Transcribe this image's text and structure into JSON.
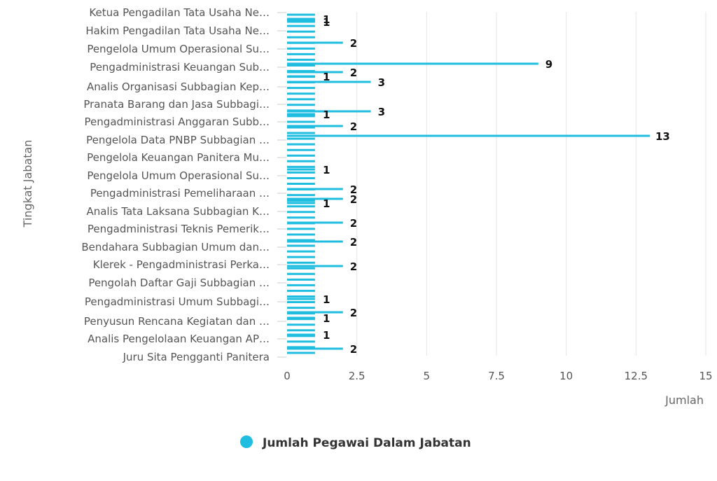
{
  "chart_data": {
    "type": "bar",
    "orientation": "horizontal",
    "ylabel": "Tingkat Jabatan",
    "xlabel": "Jumlah",
    "xlim": [
      0,
      15
    ],
    "xticks": [
      "0",
      "2.5",
      "5",
      "7.5",
      "10",
      "12.5",
      "15"
    ],
    "xtick_values": [
      0,
      2.5,
      5,
      7.5,
      10,
      12.5,
      15
    ],
    "grid": true,
    "legend_position": "bottom",
    "color": "#1fbde0",
    "visible_category_labels": [
      "Ketua Pengadilan Tata Usaha Ne…",
      "Hakim Pengadilan Tata Usaha Ne…",
      "Pengelola Umum Operasional Su…",
      "Pengadministrasi Keuangan Sub…",
      "Analis Organisasi Subbagian Kep…",
      "Pranata Barang dan Jasa Subbagi…",
      "Pengadministrasi Anggaran Subb…",
      "Pengelola Data PNBP Subbagian …",
      "Pengelola Keuangan Panitera Mu…",
      "Pengelola Umum Operasional Su…",
      "Pengadministrasi Pemeliharaan …",
      "Analis Tata Laksana Subbagian K…",
      "Pengadministrasi Teknis Pemerik…",
      "Bendahara Subbagian Umum dan…",
      "Klerek - Pengadministrasi Perka…",
      "Pengolah Daftar Gaji Subbagian …",
      "Pengadministrasi Umum Subbagi…",
      "Penyusun Rencana Kegiatan dan …",
      "Analis Pengelolaan Keuangan AP…",
      "Juru Sita Pengganti Panitera"
    ],
    "series": [
      {
        "name": "Jumlah Pegawai Dalam Jabatan",
        "values": [
          1,
          1,
          2,
          9,
          2,
          3,
          1,
          3,
          2,
          13,
          1,
          1,
          2,
          2,
          1,
          2,
          2,
          2,
          1,
          1,
          2,
          1,
          2
        ]
      }
    ],
    "labeled_bars": [
      {
        "value": 1,
        "label": "1"
      },
      {
        "value": 1,
        "label": "1"
      },
      {
        "value": 2,
        "label": "2"
      },
      {
        "value": 9,
        "label": "9"
      },
      {
        "value": 2,
        "label": "2"
      },
      {
        "value": 3,
        "label": "3"
      },
      {
        "value": 1,
        "label": "1"
      },
      {
        "value": 3,
        "label": "3"
      },
      {
        "value": 2,
        "label": "2"
      },
      {
        "value": 13,
        "label": "13"
      },
      {
        "value": 1,
        "label": "1"
      },
      {
        "value": 1,
        "label": "1"
      },
      {
        "value": 2,
        "label": "2"
      },
      {
        "value": 2,
        "label": "2"
      },
      {
        "value": 1,
        "label": "1"
      },
      {
        "value": 2,
        "label": "2"
      },
      {
        "value": 2,
        "label": "2"
      },
      {
        "value": 2,
        "label": "2"
      },
      {
        "value": 1,
        "label": "1"
      },
      {
        "value": 1,
        "label": "1"
      },
      {
        "value": 2,
        "label": "2"
      },
      {
        "value": 1,
        "label": "1"
      },
      {
        "value": 2,
        "label": "2"
      }
    ]
  },
  "legend": {
    "label": "Jumlah Pegawai Dalam Jabatan",
    "marker_color": "#1fbde0"
  }
}
